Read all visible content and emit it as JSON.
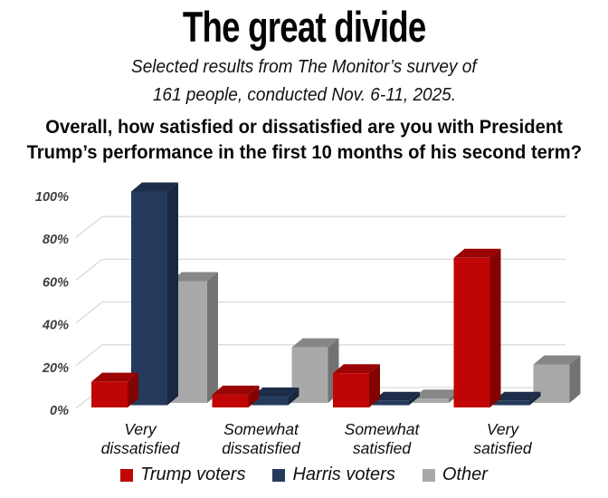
{
  "header": {
    "title": "The great divide",
    "subtitle_lines": [
      "Selected results from The Monitor’s survey of",
      "161 people, conducted Nov. 6-11, 2025."
    ],
    "question_lines": [
      "Overall, how satisfied or dissatisfied are you with President",
      "Trump’s performance in the first 10 months of his second term?"
    ]
  },
  "chart_data": {
    "type": "bar",
    "subtype": "3d-clustered-column",
    "title": "The great divide",
    "xlabel": "",
    "ylabel": "",
    "categories": [
      "Very dissatisfied",
      "Somewhat dissatisfied",
      "Somewhat satisfied",
      "Very satisfied"
    ],
    "series": [
      {
        "name": "Trump voters",
        "color": "#c00505",
        "values": [
          12,
          6,
          16,
          70
        ]
      },
      {
        "name": "Harris voters",
        "color": "#253a5d",
        "values": [
          100,
          4,
          2,
          2
        ]
      },
      {
        "name": "Other",
        "color": "#a9a9a9",
        "values": [
          57,
          26,
          2,
          18
        ]
      }
    ],
    "ylim": [
      0,
      100
    ],
    "yticks": [
      0,
      20,
      40,
      60,
      80,
      100
    ],
    "ytick_format": "{v}%",
    "grid": true,
    "gridline_color": "#d9d9d9",
    "tick_label_color": "#3f3f3f",
    "legend_position": "bottom"
  }
}
